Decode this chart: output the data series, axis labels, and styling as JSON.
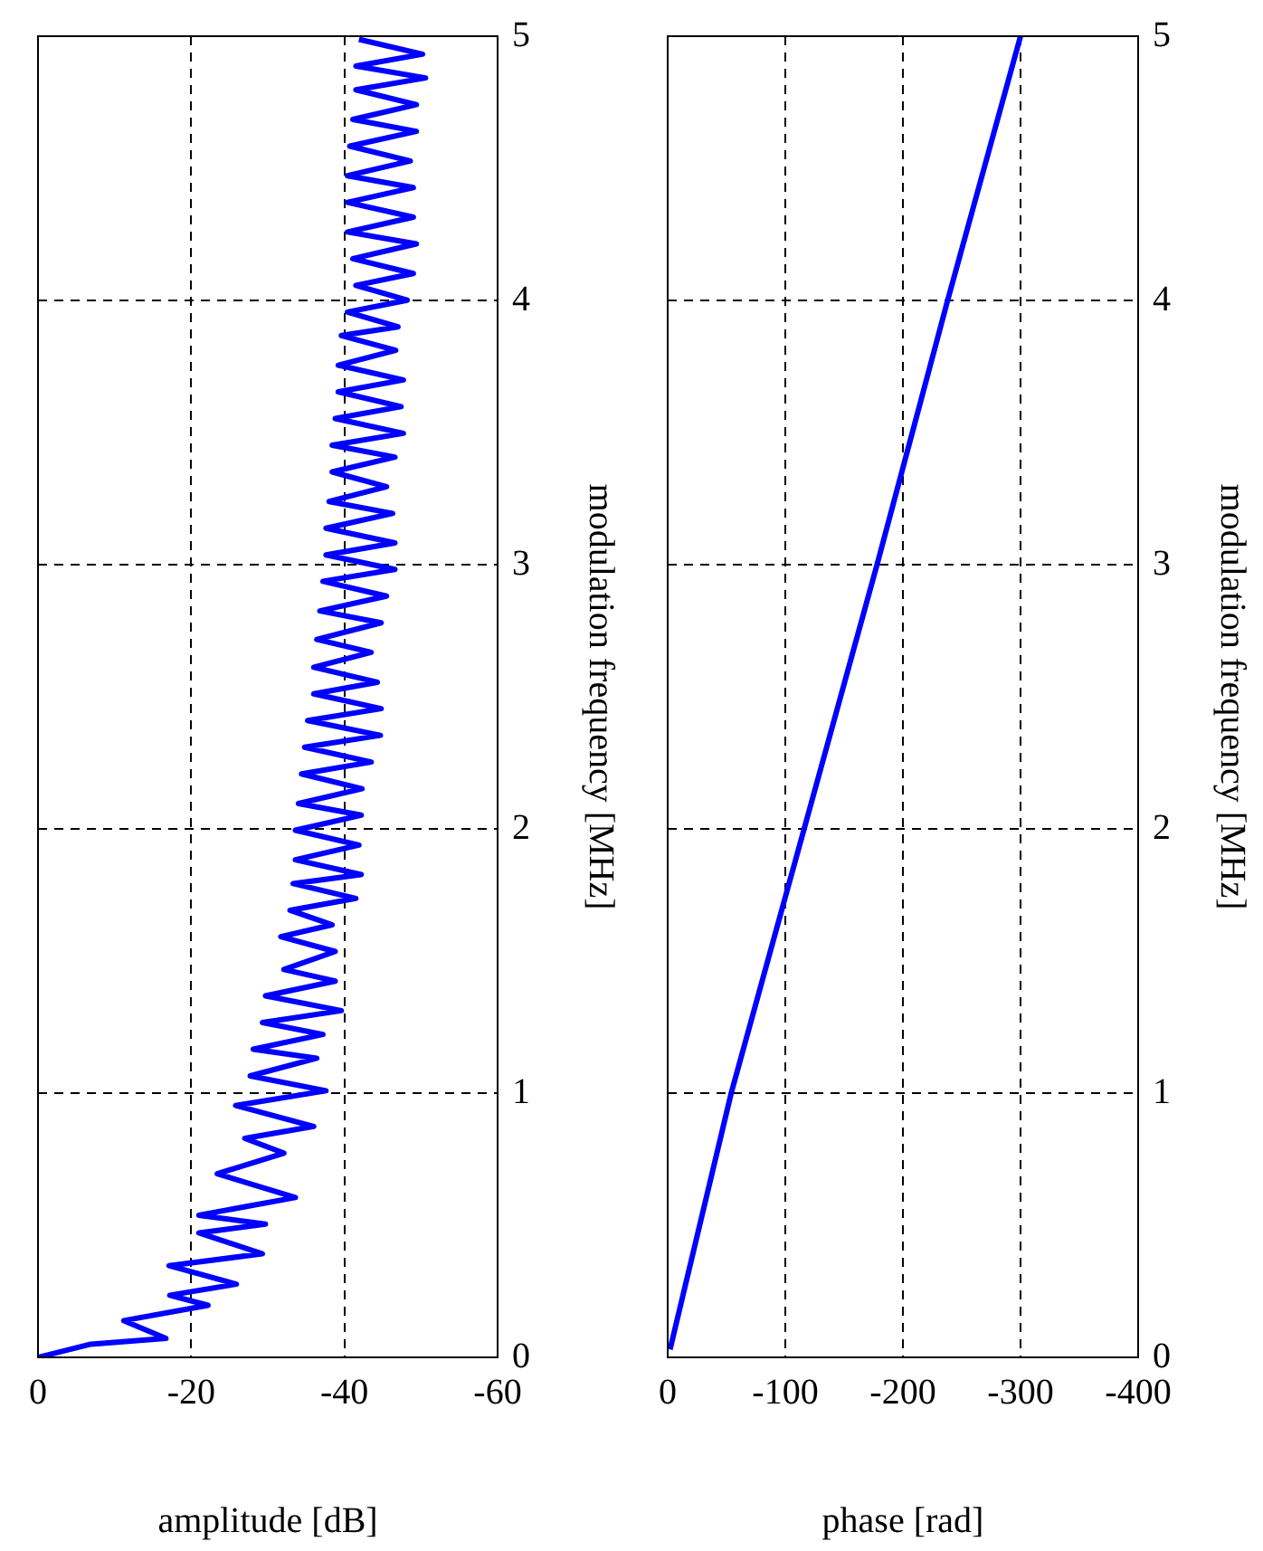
{
  "chart_data": [
    {
      "type": "line",
      "xlabel": "amplitude [dB]",
      "ylabel": "modulation frequency [MHz]",
      "color": "#0000ff",
      "x": [
        0,
        -6.9,
        -16.7,
        -11.2,
        -22.2,
        -17.2,
        -25.9,
        -17.1,
        -29.3,
        -21,
        -29.7,
        -21,
        -33.6,
        -23.4,
        -32.1,
        -27,
        -36,
        -25.8,
        -37.6,
        -27.7,
        -36.4,
        -28.1,
        -37.2,
        -29.3,
        -39.6,
        -29.7,
        -38.8,
        -32.1,
        -38.8,
        -31.7,
        -38.4,
        -32.9,
        -41.5,
        -33.3,
        -42.2,
        -33.6,
        -41.9,
        -33.6,
        -42.2,
        -34,
        -42.3,
        -34.4,
        -43.5,
        -34.8,
        -44.7,
        -35.2,
        -44.8,
        -36,
        -44.3,
        -36,
        -43.5,
        -36.4,
        -44.8,
        -36.8,
        -45.5,
        -37.2,
        -46.6,
        -37.6,
        -46.6,
        -37.6,
        -46.3,
        -38,
        -45.5,
        -38.4,
        -46.6,
        -38.4,
        -47.7,
        -38.8,
        -47.4,
        -39.2,
        -47.7,
        -39.2,
        -46.7,
        -39.6,
        -47,
        -40.4,
        -48.2,
        -41.5,
        -49,
        -41.1,
        -49.4,
        -40.4,
        -49,
        -40.4,
        -49,
        -40.4,
        -48.6,
        -40.7,
        -49.4,
        -41.1,
        -49.4,
        -41.5,
        -50.6,
        -41.5,
        -50.2,
        -41.9
      ],
      "values": [
        0,
        0.05,
        0.072,
        0.139,
        0.197,
        0.235,
        0.277,
        0.347,
        0.392,
        0.471,
        0.504,
        0.538,
        0.605,
        0.695,
        0.773,
        0.829,
        0.874,
        0.953,
        1.009,
        1.065,
        1.132,
        1.166,
        1.222,
        1.267,
        1.312,
        1.368,
        1.424,
        1.468,
        1.536,
        1.592,
        1.637,
        1.692,
        1.737,
        1.793,
        1.827,
        1.883,
        1.939,
        1.995,
        2.052,
        2.096,
        2.152,
        2.208,
        2.253,
        2.309,
        2.354,
        2.41,
        2.455,
        2.511,
        2.555,
        2.612,
        2.668,
        2.717,
        2.78,
        2.825,
        2.881,
        2.937,
        2.982,
        3.037,
        3.082,
        3.138,
        3.194,
        3.239,
        3.295,
        3.351,
        3.407,
        3.452,
        3.497,
        3.553,
        3.598,
        3.654,
        3.699,
        3.755,
        3.811,
        3.867,
        3.9,
        3.956,
        4.001,
        4.057,
        4.102,
        4.158,
        4.214,
        4.259,
        4.315,
        4.371,
        4.427,
        4.472,
        4.528,
        4.584,
        4.64,
        4.685,
        4.741,
        4.797,
        4.842,
        4.887,
        4.932,
        4.988
      ],
      "xlim": [
        0,
        -60
      ],
      "xticks": [
        0,
        -20,
        -40,
        -60
      ],
      "ylim": [
        0,
        5
      ],
      "yticks": [
        0,
        1,
        2,
        3,
        4,
        5
      ],
      "grid": true
    },
    {
      "type": "line",
      "xlabel": "phase [rad]",
      "ylabel": "modulation frequency [MHz]",
      "color": "#0000ff",
      "x": [
        -2,
        -54,
        -116,
        -178,
        -238,
        -300
      ],
      "values": [
        0.03,
        1,
        2,
        3,
        4,
        5
      ],
      "xlim": [
        0,
        -400
      ],
      "xticks": [
        0,
        -100,
        -200,
        -300,
        -400
      ],
      "ylim": [
        0,
        5
      ],
      "yticks": [
        0,
        1,
        2,
        3,
        4,
        5
      ],
      "grid": true
    }
  ]
}
